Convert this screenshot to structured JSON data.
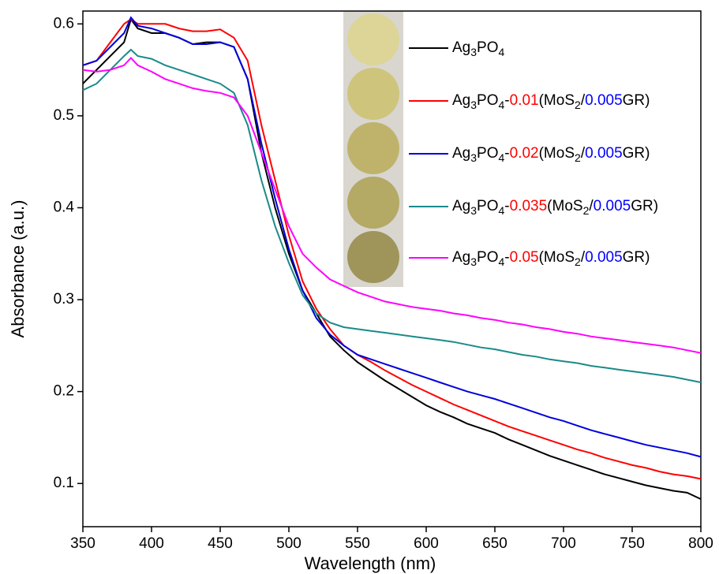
{
  "chart_data": {
    "type": "line",
    "x_label": "Wavelength (nm)",
    "y_label": "Absorbance (a.u.)",
    "x": [
      350,
      360,
      370,
      380,
      385,
      390,
      400,
      410,
      420,
      430,
      440,
      450,
      460,
      470,
      480,
      490,
      500,
      510,
      520,
      530,
      540,
      550,
      560,
      570,
      580,
      590,
      600,
      610,
      620,
      630,
      640,
      650,
      660,
      670,
      680,
      690,
      700,
      710,
      720,
      730,
      740,
      750,
      760,
      770,
      780,
      790,
      800
    ],
    "xlim": [
      350,
      800
    ],
    "xticks": [
      350,
      400,
      450,
      500,
      550,
      600,
      650,
      700,
      750,
      800
    ],
    "ylim": [
      0.053,
      0.614
    ],
    "yticks": [
      0.1,
      0.2,
      0.3,
      0.4,
      0.5,
      0.6
    ],
    "series": [
      {
        "name": "Ag3PO4",
        "color": "#000000",
        "values": [
          0.535,
          0.55,
          0.565,
          0.58,
          0.605,
          0.595,
          0.59,
          0.59,
          0.585,
          0.578,
          0.58,
          0.58,
          0.575,
          0.54,
          0.46,
          0.4,
          0.35,
          0.31,
          0.285,
          0.26,
          0.245,
          0.232,
          0.222,
          0.212,
          0.203,
          0.194,
          0.185,
          0.178,
          0.172,
          0.165,
          0.16,
          0.155,
          0.148,
          0.142,
          0.136,
          0.13,
          0.125,
          0.12,
          0.115,
          0.11,
          0.106,
          0.102,
          0.098,
          0.095,
          0.092,
          0.09,
          0.083
        ]
      },
      {
        "name": "Ag3PO4-0.01(MoS2/0.005GR)",
        "color": "#ff0000",
        "values": [
          0.555,
          0.56,
          0.58,
          0.6,
          0.605,
          0.6,
          0.6,
          0.6,
          0.595,
          0.592,
          0.592,
          0.594,
          0.585,
          0.56,
          0.49,
          0.43,
          0.37,
          0.32,
          0.29,
          0.268,
          0.25,
          0.24,
          0.232,
          0.223,
          0.215,
          0.207,
          0.2,
          0.193,
          0.186,
          0.18,
          0.174,
          0.168,
          0.162,
          0.157,
          0.152,
          0.147,
          0.142,
          0.137,
          0.133,
          0.128,
          0.124,
          0.12,
          0.117,
          0.113,
          0.11,
          0.108,
          0.105
        ]
      },
      {
        "name": "Ag3PO4-0.02(MoS2/0.005GR)",
        "color": "#0000dd",
        "values": [
          0.555,
          0.56,
          0.575,
          0.59,
          0.607,
          0.598,
          0.595,
          0.59,
          0.585,
          0.578,
          0.578,
          0.58,
          0.575,
          0.54,
          0.47,
          0.41,
          0.355,
          0.31,
          0.28,
          0.262,
          0.25,
          0.24,
          0.235,
          0.23,
          0.225,
          0.22,
          0.215,
          0.21,
          0.205,
          0.2,
          0.196,
          0.192,
          0.187,
          0.182,
          0.177,
          0.172,
          0.168,
          0.163,
          0.158,
          0.154,
          0.15,
          0.146,
          0.142,
          0.139,
          0.136,
          0.133,
          0.129
        ]
      },
      {
        "name": "Ag3PO4-0.035(MoS2/0.005GR)",
        "color": "#1a8a8a",
        "values": [
          0.528,
          0.535,
          0.55,
          0.565,
          0.572,
          0.565,
          0.562,
          0.555,
          0.55,
          0.545,
          0.54,
          0.535,
          0.525,
          0.49,
          0.43,
          0.38,
          0.34,
          0.305,
          0.285,
          0.275,
          0.27,
          0.268,
          0.266,
          0.264,
          0.262,
          0.26,
          0.258,
          0.256,
          0.254,
          0.251,
          0.248,
          0.246,
          0.243,
          0.24,
          0.238,
          0.235,
          0.233,
          0.231,
          0.228,
          0.226,
          0.224,
          0.222,
          0.22,
          0.218,
          0.216,
          0.213,
          0.21
        ]
      },
      {
        "name": "Ag3PO4-0.05(MoS2/0.005GR)",
        "color": "#ff00ff",
        "values": [
          0.55,
          0.548,
          0.55,
          0.555,
          0.563,
          0.555,
          0.548,
          0.54,
          0.535,
          0.53,
          0.527,
          0.525,
          0.52,
          0.5,
          0.46,
          0.42,
          0.38,
          0.35,
          0.335,
          0.322,
          0.315,
          0.308,
          0.303,
          0.298,
          0.295,
          0.292,
          0.29,
          0.288,
          0.285,
          0.283,
          0.28,
          0.278,
          0.275,
          0.273,
          0.27,
          0.268,
          0.265,
          0.263,
          0.26,
          0.258,
          0.256,
          0.254,
          0.252,
          0.25,
          0.248,
          0.245,
          0.242
        ]
      }
    ]
  }
}
